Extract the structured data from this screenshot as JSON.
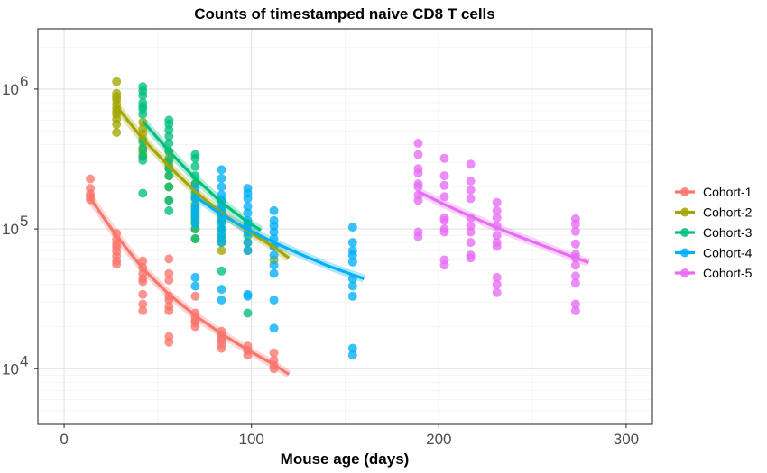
{
  "chart_data": {
    "type": "scatter",
    "title": "Counts of timestamped naive CD8 T cells",
    "xlabel": "Mouse age (days)",
    "ylabel": "",
    "x_scale": "linear",
    "y_scale": "log10",
    "xlim": [
      -14,
      314
    ],
    "ylim": [
      4000,
      2700000
    ],
    "x_ticks": [
      0,
      100,
      200,
      300
    ],
    "x_tick_labels": [
      "0",
      "100",
      "200",
      "300"
    ],
    "y_ticks": [
      10000,
      100000,
      1000000
    ],
    "y_tick_labels": [
      {
        "base": "10",
        "exp": "4"
      },
      {
        "base": "10",
        "exp": "5"
      },
      {
        "base": "10",
        "exp": "6"
      }
    ],
    "grid": true,
    "legend_position": "right",
    "series": [
      {
        "name": "Cohort-1",
        "color": "#F8766D",
        "points": [
          [
            14,
            228000
          ],
          [
            14,
            195000
          ],
          [
            14,
            178000
          ],
          [
            14,
            170000
          ],
          [
            14,
            162000
          ],
          [
            28,
            93000
          ],
          [
            28,
            84000
          ],
          [
            28,
            78000
          ],
          [
            28,
            74000
          ],
          [
            28,
            69000
          ],
          [
            28,
            64000
          ],
          [
            28,
            59000
          ],
          [
            28,
            56000
          ],
          [
            42,
            59000
          ],
          [
            42,
            53000
          ],
          [
            42,
            48000
          ],
          [
            42,
            44000
          ],
          [
            42,
            42000
          ],
          [
            42,
            34000
          ],
          [
            42,
            29000
          ],
          [
            42,
            26000
          ],
          [
            56,
            61000
          ],
          [
            56,
            48000
          ],
          [
            56,
            43000
          ],
          [
            56,
            33000
          ],
          [
            56,
            31000
          ],
          [
            56,
            28000
          ],
          [
            56,
            26000
          ],
          [
            56,
            17000
          ],
          [
            56,
            15500
          ],
          [
            70,
            33000
          ],
          [
            70,
            25000
          ],
          [
            70,
            23500
          ],
          [
            70,
            22000
          ],
          [
            70,
            21500
          ],
          [
            70,
            20000
          ],
          [
            84,
            18500
          ],
          [
            84,
            17500
          ],
          [
            84,
            16500
          ],
          [
            84,
            16000
          ],
          [
            84,
            15000
          ],
          [
            84,
            14000
          ],
          [
            98,
            14500
          ],
          [
            98,
            13500
          ],
          [
            98,
            12500
          ],
          [
            112,
            13000
          ],
          [
            112,
            11500
          ],
          [
            112,
            10500
          ],
          [
            112,
            10000
          ]
        ],
        "fit": [
          [
            14,
            165000
          ],
          [
            28,
            89000
          ],
          [
            42,
            52000
          ],
          [
            56,
            34000
          ],
          [
            70,
            24000
          ],
          [
            84,
            17800
          ],
          [
            98,
            13600
          ],
          [
            112,
            10700
          ],
          [
            120,
            9100
          ]
        ]
      },
      {
        "name": "Cohort-2",
        "color": "#A3A500",
        "points": [
          [
            28,
            1130000
          ],
          [
            28,
            930000
          ],
          [
            28,
            880000
          ],
          [
            28,
            840000
          ],
          [
            28,
            780000
          ],
          [
            28,
            730000
          ],
          [
            28,
            690000
          ],
          [
            28,
            660000
          ],
          [
            28,
            610000
          ],
          [
            28,
            560000
          ],
          [
            28,
            490000
          ],
          [
            42,
            580000
          ],
          [
            42,
            520000
          ],
          [
            42,
            480000
          ],
          [
            42,
            440000
          ],
          [
            42,
            380000
          ],
          [
            42,
            350000
          ],
          [
            42,
            330000
          ],
          [
            56,
            360000
          ],
          [
            56,
            320000
          ],
          [
            56,
            290000
          ],
          [
            56,
            270000
          ],
          [
            56,
            240000
          ],
          [
            56,
            200000
          ],
          [
            56,
            160000
          ],
          [
            70,
            210000
          ],
          [
            70,
            170000
          ],
          [
            70,
            150000
          ],
          [
            70,
            130000
          ],
          [
            70,
            115000
          ],
          [
            70,
            100000
          ],
          [
            70,
            85000
          ],
          [
            84,
            130000
          ],
          [
            84,
            115000
          ],
          [
            84,
            100000
          ],
          [
            84,
            90000
          ],
          [
            84,
            80000
          ],
          [
            84,
            70000
          ],
          [
            98,
            80000
          ],
          [
            98,
            70000
          ],
          [
            112,
            75000
          ],
          [
            112,
            60000
          ]
        ],
        "fit": [
          [
            28,
            750000
          ],
          [
            42,
            440000
          ],
          [
            56,
            280000
          ],
          [
            70,
            185000
          ],
          [
            84,
            130000
          ],
          [
            98,
            97000
          ],
          [
            112,
            74000
          ],
          [
            120,
            62000
          ]
        ]
      },
      {
        "name": "Cohort-3",
        "color": "#00BF7D",
        "points": [
          [
            42,
            1040000
          ],
          [
            42,
            970000
          ],
          [
            42,
            900000
          ],
          [
            42,
            800000
          ],
          [
            42,
            750000
          ],
          [
            42,
            720000
          ],
          [
            42,
            660000
          ],
          [
            42,
            420000
          ],
          [
            42,
            370000
          ],
          [
            42,
            330000
          ],
          [
            42,
            310000
          ],
          [
            42,
            180000
          ],
          [
            56,
            600000
          ],
          [
            56,
            560000
          ],
          [
            56,
            510000
          ],
          [
            56,
            460000
          ],
          [
            56,
            410000
          ],
          [
            56,
            360000
          ],
          [
            56,
            310000
          ],
          [
            56,
            270000
          ],
          [
            56,
            240000
          ],
          [
            56,
            200000
          ],
          [
            56,
            160000
          ],
          [
            56,
            135000
          ],
          [
            70,
            340000
          ],
          [
            70,
            320000
          ],
          [
            70,
            280000
          ],
          [
            70,
            240000
          ],
          [
            70,
            210000
          ],
          [
            70,
            180000
          ],
          [
            70,
            165000
          ],
          [
            70,
            140000
          ],
          [
            70,
            120000
          ],
          [
            70,
            110000
          ],
          [
            70,
            100000
          ],
          [
            70,
            85000
          ],
          [
            84,
            160000
          ],
          [
            84,
            140000
          ],
          [
            84,
            125000
          ],
          [
            84,
            110000
          ],
          [
            84,
            100000
          ],
          [
            84,
            85000
          ],
          [
            84,
            50000
          ],
          [
            98,
            110000
          ],
          [
            98,
            90000
          ],
          [
            98,
            25000
          ]
        ],
        "fit": [
          [
            42,
            590000
          ],
          [
            56,
            360000
          ],
          [
            70,
            230000
          ],
          [
            84,
            155000
          ],
          [
            98,
            112000
          ],
          [
            105,
            98000
          ]
        ]
      },
      {
        "name": "Cohort-4",
        "color": "#00B0F6",
        "points": [
          [
            70,
            195000
          ],
          [
            70,
            165000
          ],
          [
            70,
            145000
          ],
          [
            70,
            135000
          ],
          [
            70,
            125000
          ],
          [
            70,
            110000
          ],
          [
            70,
            45000
          ],
          [
            70,
            39000
          ],
          [
            84,
            265000
          ],
          [
            84,
            230000
          ],
          [
            84,
            200000
          ],
          [
            84,
            175000
          ],
          [
            84,
            160000
          ],
          [
            84,
            145000
          ],
          [
            84,
            130000
          ],
          [
            84,
            115000
          ],
          [
            84,
            100000
          ],
          [
            84,
            90000
          ],
          [
            84,
            80000
          ],
          [
            84,
            37000
          ],
          [
            84,
            31000
          ],
          [
            98,
            195000
          ],
          [
            98,
            180000
          ],
          [
            98,
            165000
          ],
          [
            98,
            145000
          ],
          [
            98,
            130000
          ],
          [
            98,
            115000
          ],
          [
            98,
            105000
          ],
          [
            98,
            95000
          ],
          [
            98,
            80000
          ],
          [
            98,
            70000
          ],
          [
            98,
            34000
          ],
          [
            98,
            33000
          ],
          [
            112,
            135000
          ],
          [
            112,
            115000
          ],
          [
            112,
            105000
          ],
          [
            112,
            95000
          ],
          [
            112,
            85000
          ],
          [
            112,
            75000
          ],
          [
            112,
            65000
          ],
          [
            112,
            55000
          ],
          [
            112,
            48000
          ],
          [
            112,
            31000
          ],
          [
            112,
            19500
          ],
          [
            154,
            103000
          ],
          [
            154,
            80000
          ],
          [
            154,
            70000
          ],
          [
            154,
            65000
          ],
          [
            154,
            58000
          ],
          [
            154,
            44000
          ],
          [
            154,
            39000
          ],
          [
            154,
            33000
          ],
          [
            154,
            14000
          ],
          [
            154,
            12500
          ]
        ],
        "fit": [
          [
            70,
            170000
          ],
          [
            84,
            127000
          ],
          [
            98,
            99000
          ],
          [
            112,
            80000
          ],
          [
            126,
            66000
          ],
          [
            140,
            55000
          ],
          [
            154,
            47000
          ],
          [
            160,
            44000
          ]
        ]
      },
      {
        "name": "Cohort-5",
        "color": "#E76BF3",
        "points": [
          [
            189,
            410000
          ],
          [
            189,
            340000
          ],
          [
            189,
            270000
          ],
          [
            189,
            250000
          ],
          [
            189,
            210000
          ],
          [
            189,
            200000
          ],
          [
            189,
            175000
          ],
          [
            189,
            160000
          ],
          [
            189,
            95000
          ],
          [
            189,
            88000
          ],
          [
            203,
            320000
          ],
          [
            203,
            240000
          ],
          [
            203,
            205000
          ],
          [
            203,
            170000
          ],
          [
            203,
            120000
          ],
          [
            203,
            115000
          ],
          [
            203,
            100000
          ],
          [
            203,
            95000
          ],
          [
            203,
            60000
          ],
          [
            203,
            55000
          ],
          [
            217,
            290000
          ],
          [
            217,
            220000
          ],
          [
            217,
            190000
          ],
          [
            217,
            165000
          ],
          [
            217,
            120000
          ],
          [
            217,
            105000
          ],
          [
            217,
            95000
          ],
          [
            217,
            80000
          ],
          [
            217,
            65000
          ],
          [
            217,
            62000
          ],
          [
            231,
            155000
          ],
          [
            231,
            135000
          ],
          [
            231,
            120000
          ],
          [
            231,
            105000
          ],
          [
            231,
            90000
          ],
          [
            231,
            80000
          ],
          [
            231,
            75000
          ],
          [
            231,
            45000
          ],
          [
            231,
            40000
          ],
          [
            231,
            35000
          ],
          [
            273,
            118000
          ],
          [
            273,
            108000
          ],
          [
            273,
            96000
          ],
          [
            273,
            78000
          ],
          [
            273,
            66000
          ],
          [
            273,
            62000
          ],
          [
            273,
            55000
          ],
          [
            273,
            46000
          ],
          [
            273,
            41000
          ],
          [
            273,
            29000
          ],
          [
            273,
            26000
          ]
        ],
        "fit": [
          [
            189,
            185000
          ],
          [
            203,
            150000
          ],
          [
            217,
            123000
          ],
          [
            231,
            102000
          ],
          [
            245,
            86000
          ],
          [
            259,
            73000
          ],
          [
            273,
            62000
          ],
          [
            280,
            57500
          ]
        ]
      }
    ]
  }
}
